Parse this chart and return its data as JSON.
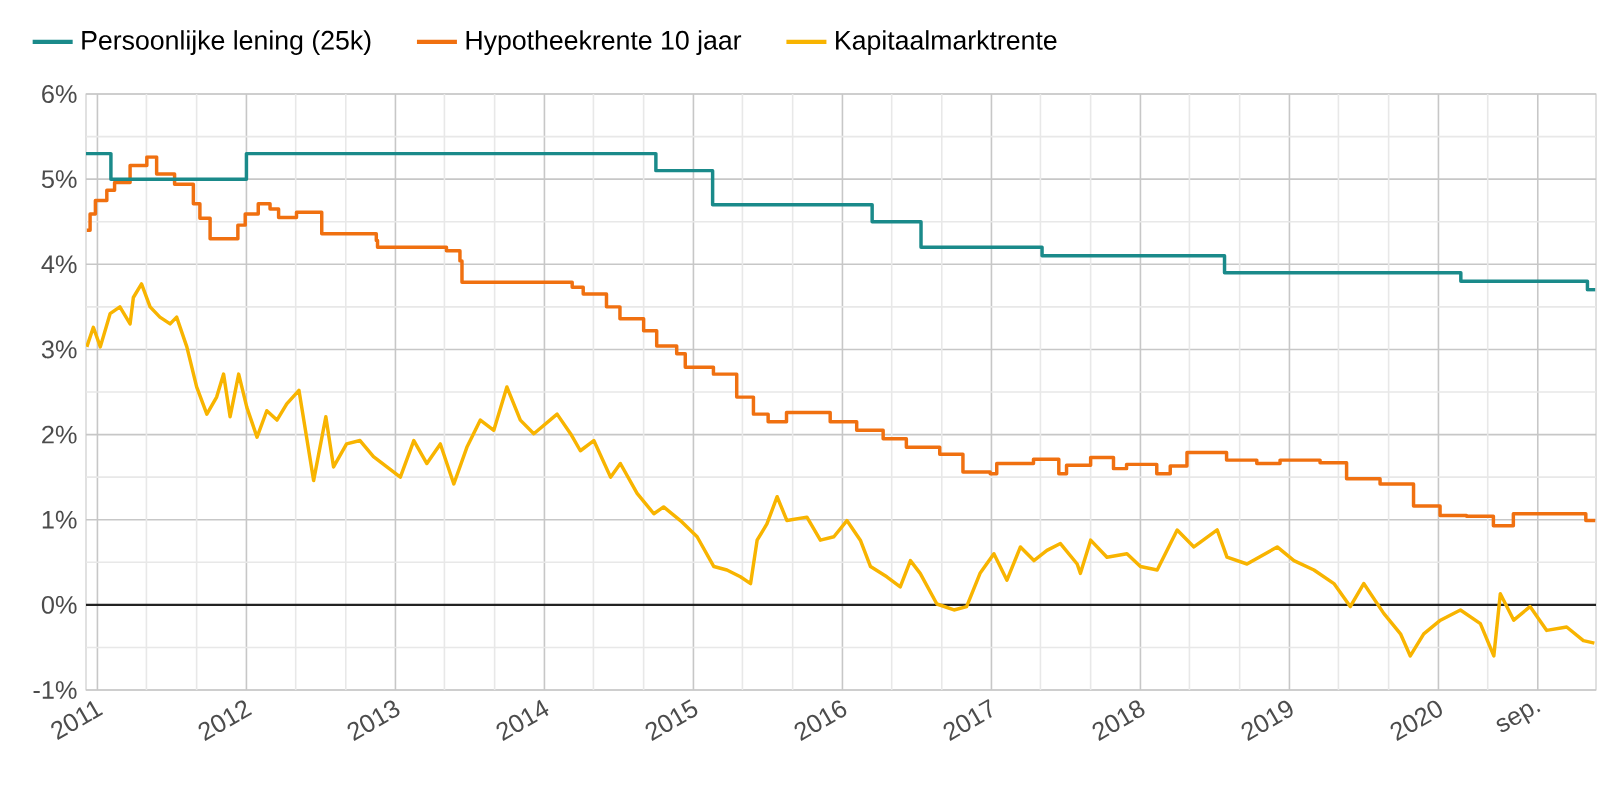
{
  "chart_data": {
    "type": "line",
    "xlim": [
      "2010-12-04",
      "2021-01-22"
    ],
    "ylim": [
      -1,
      6
    ],
    "xticks": [
      {
        "value": "2011",
        "label": "2011"
      },
      {
        "value": "2011-05",
        "label": null
      },
      {
        "value": "2011-09",
        "label": null
      },
      {
        "value": "2012",
        "label": "2012"
      },
      {
        "value": "2012-05",
        "label": null
      },
      {
        "value": "2012-09",
        "label": null
      },
      {
        "value": "2013",
        "label": "2013"
      },
      {
        "value": "2013-05",
        "label": null
      },
      {
        "value": "2013-09",
        "label": null
      },
      {
        "value": "2014",
        "label": "2014"
      },
      {
        "value": "2014-05",
        "label": null
      },
      {
        "value": "2014-09",
        "label": null
      },
      {
        "value": "2015",
        "label": "2015"
      },
      {
        "value": "2015-05",
        "label": null
      },
      {
        "value": "2015-09",
        "label": null
      },
      {
        "value": "2016",
        "label": "2016"
      },
      {
        "value": "2016-05",
        "label": null
      },
      {
        "value": "2016-09",
        "label": null
      },
      {
        "value": "2017",
        "label": "2017"
      },
      {
        "value": "2017-05",
        "label": null
      },
      {
        "value": "2017-09",
        "label": null
      },
      {
        "value": "2018",
        "label": "2018"
      },
      {
        "value": "2018-05",
        "label": null
      },
      {
        "value": "2018-09",
        "label": null
      },
      {
        "value": "2019",
        "label": "2019"
      },
      {
        "value": "2019-05",
        "label": null
      },
      {
        "value": "2019-09",
        "label": null
      },
      {
        "value": "2020",
        "label": "2020"
      },
      {
        "value": "2020-05",
        "label": null
      },
      {
        "value": "2020-09",
        "label": "sep."
      }
    ],
    "yticks": [
      {
        "value": -1,
        "label": "-1%"
      },
      {
        "value": -0.5,
        "label": null
      },
      {
        "value": 0,
        "label": "0%"
      },
      {
        "value": 0.5,
        "label": null
      },
      {
        "value": 1,
        "label": "1%"
      },
      {
        "value": 1.5,
        "label": null
      },
      {
        "value": 2,
        "label": "2%"
      },
      {
        "value": 2.5,
        "label": null
      },
      {
        "value": 3,
        "label": "3%"
      },
      {
        "value": 3.5,
        "label": null
      },
      {
        "value": 4,
        "label": "4%"
      },
      {
        "value": 4.5,
        "label": null
      },
      {
        "value": 5,
        "label": "5%"
      },
      {
        "value": 5.5,
        "label": null
      },
      {
        "value": 6,
        "label": "6%"
      }
    ],
    "grid": true,
    "legend": "top left",
    "ref_lines": [
      {
        "axis": "y",
        "value": 0,
        "color": "#222222"
      }
    ],
    "series": [
      {
        "name": "Persoonlijke lening (25k)",
        "type": "step",
        "color": "#1a8a8a",
        "x": [
          "2010-12-04",
          "2011-02-03",
          "2012-01-01",
          "2014-10-01",
          "2015-02-17",
          "2016-03-14",
          "2016-07-12",
          "2017-05-05",
          "2018-07-26",
          "2020-02-25",
          "2021-01-01",
          "2021-01-20"
        ],
        "values": [
          5.3,
          5.0,
          5.3,
          5.1,
          4.7,
          4.5,
          4.2,
          4.1,
          3.9,
          3.8,
          3.7,
          3.7
        ]
      },
      {
        "name": "Hypotheekrente 10 jaar",
        "type": "step",
        "color": "#f07010",
        "x": [
          "2010-12-06",
          "2010-12-14",
          "2010-12-27",
          "2011-01-24",
          "2011-02-12",
          "2011-03-22",
          "2011-05-02",
          "2011-05-26",
          "2011-07-09",
          "2011-08-24",
          "2011-09-09",
          "2011-10-04",
          "2011-12-11",
          "2011-12-29",
          "2012-01-30",
          "2012-02-28",
          "2012-03-20",
          "2012-05-03",
          "2012-07-04",
          "2012-11-15",
          "2012-11-18",
          "2013-05-06",
          "2013-06-08",
          "2013-06-13",
          "2014-03-10",
          "2014-04-06",
          "2014-06-02",
          "2014-07-05",
          "2014-09-01",
          "2014-10-03",
          "2014-11-21",
          "2014-12-12",
          "2015-02-19",
          "2015-04-17",
          "2015-05-28",
          "2015-07-03",
          "2015-08-17",
          "2015-12-02",
          "2016-02-05",
          "2016-04-10",
          "2016-06-06",
          "2016-08-27",
          "2016-10-23",
          "2016-12-29",
          "2017-01-14",
          "2017-04-14",
          "2017-06-15",
          "2017-07-04",
          "2017-09-01",
          "2017-10-27",
          "2017-11-28",
          "2018-02-10",
          "2018-03-15",
          "2018-04-25",
          "2018-07-31",
          "2018-10-13",
          "2018-12-09",
          "2019-03-17",
          "2019-05-21",
          "2019-08-11",
          "2019-11-01",
          "2020-01-05",
          "2020-03-10",
          "2020-05-15",
          "2020-07-03",
          "2020-10-25",
          "2020-12-28",
          "2021-01-20"
        ],
        "values": [
          4.4,
          4.59,
          4.75,
          4.87,
          4.96,
          5.16,
          5.26,
          5.06,
          4.94,
          4.71,
          4.54,
          4.3,
          4.46,
          4.59,
          4.71,
          4.65,
          4.55,
          4.61,
          4.36,
          4.28,
          4.2,
          4.16,
          4.04,
          3.79,
          3.73,
          3.65,
          3.5,
          3.36,
          3.22,
          3.04,
          2.95,
          2.79,
          2.71,
          2.44,
          2.24,
          2.15,
          2.26,
          2.15,
          2.05,
          1.95,
          1.85,
          1.77,
          1.56,
          1.54,
          1.66,
          1.71,
          1.54,
          1.64,
          1.73,
          1.6,
          1.65,
          1.54,
          1.63,
          1.79,
          1.7,
          1.66,
          1.7,
          1.67,
          1.48,
          1.42,
          1.16,
          1.05,
          1.04,
          0.93,
          1.07,
          1.07,
          0.99,
          0.99
        ]
      },
      {
        "name": "Kapitaalmarktrente",
        "type": "line",
        "color": "#f8b400",
        "x": [
          "2010-12-06",
          "2010-12-22",
          "2011-01-08",
          "2011-02-01",
          "2011-02-25",
          "2011-03-22",
          "2011-03-30",
          "2011-04-19",
          "2011-05-10",
          "2011-06-03",
          "2011-06-28",
          "2011-07-14",
          "2011-08-08",
          "2011-09-01",
          "2011-09-26",
          "2011-10-20",
          "2011-11-06",
          "2011-11-22",
          "2011-12-13",
          "2012-01-02",
          "2012-01-27",
          "2012-02-20",
          "2012-03-16",
          "2012-04-09",
          "2012-05-09",
          "2012-06-14",
          "2012-07-14",
          "2012-08-02",
          "2012-09-03",
          "2012-10-06",
          "2012-11-08",
          "2013-01-13",
          "2013-02-15",
          "2013-03-19",
          "2013-04-21",
          "2013-05-24",
          "2013-06-25",
          "2013-07-28",
          "2013-08-30",
          "2013-10-01",
          "2013-11-03",
          "2013-12-06",
          "2014-02-01",
          "2014-03-06",
          "2014-03-30",
          "2014-05-02",
          "2014-06-12",
          "2014-07-06",
          "2014-08-16",
          "2014-09-26",
          "2014-10-20",
          "2014-11-30",
          "2015-01-10",
          "2015-02-20",
          "2015-03-24",
          "2015-04-26",
          "2015-05-21",
          "2015-06-06",
          "2015-06-30",
          "2015-07-25",
          "2015-08-18",
          "2015-10-06",
          "2015-11-08",
          "2015-12-11",
          "2016-01-12",
          "2016-02-14",
          "2016-03-10",
          "2016-04-19",
          "2016-05-22",
          "2016-06-16",
          "2016-07-10",
          "2016-08-20",
          "2016-10-01",
          "2016-11-01",
          "2016-12-04",
          "2017-01-07",
          "2017-02-08",
          "2017-03-13",
          "2017-04-15",
          "2017-05-17",
          "2017-06-19",
          "2017-07-30",
          "2017-08-07",
          "2017-09-01",
          "2017-10-11",
          "2017-11-29",
          "2018-01-01",
          "2018-02-11",
          "2018-04-01",
          "2018-05-12",
          "2018-07-08",
          "2018-08-01",
          "2018-09-19",
          "2018-12-02",
          "2019-01-12",
          "2019-03-02",
          "2019-04-20",
          "2019-05-30",
          "2019-07-02",
          "2019-08-20",
          "2019-09-30",
          "2019-10-24",
          "2019-11-26",
          "2020-01-06",
          "2020-02-24",
          "2020-04-13",
          "2020-05-16",
          "2020-06-01",
          "2020-07-04",
          "2020-08-13",
          "2020-09-23",
          "2020-11-11",
          "2020-12-22",
          "2021-01-18"
        ],
        "values": [
          3.03,
          3.26,
          3.03,
          3.42,
          3.5,
          3.3,
          3.61,
          3.77,
          3.5,
          3.38,
          3.3,
          3.38,
          3.03,
          2.56,
          2.24,
          2.44,
          2.71,
          2.21,
          2.71,
          2.32,
          1.97,
          2.28,
          2.17,
          2.36,
          2.52,
          1.46,
          2.21,
          1.62,
          1.89,
          1.93,
          1.74,
          1.5,
          1.93,
          1.66,
          1.89,
          1.42,
          1.85,
          2.17,
          2.05,
          2.56,
          2.17,
          2.01,
          2.24,
          2.01,
          1.81,
          1.93,
          1.5,
          1.66,
          1.31,
          1.07,
          1.15,
          0.99,
          0.8,
          0.45,
          0.41,
          0.33,
          0.25,
          0.76,
          0.95,
          1.27,
          0.99,
          1.03,
          0.76,
          0.8,
          0.99,
          0.76,
          0.45,
          0.33,
          0.21,
          0.52,
          0.37,
          0.01,
          -0.06,
          -0.02,
          0.37,
          0.6,
          0.29,
          0.68,
          0.52,
          0.64,
          0.72,
          0.48,
          0.37,
          0.76,
          0.56,
          0.6,
          0.45,
          0.41,
          0.88,
          0.68,
          0.88,
          0.56,
          0.48,
          0.68,
          0.52,
          0.41,
          0.25,
          -0.02,
          0.25,
          -0.1,
          -0.34,
          -0.6,
          -0.34,
          -0.18,
          -0.06,
          -0.22,
          -0.6,
          0.13,
          -0.18,
          -0.02,
          -0.3,
          -0.26,
          -0.42,
          -0.45
        ]
      }
    ]
  }
}
